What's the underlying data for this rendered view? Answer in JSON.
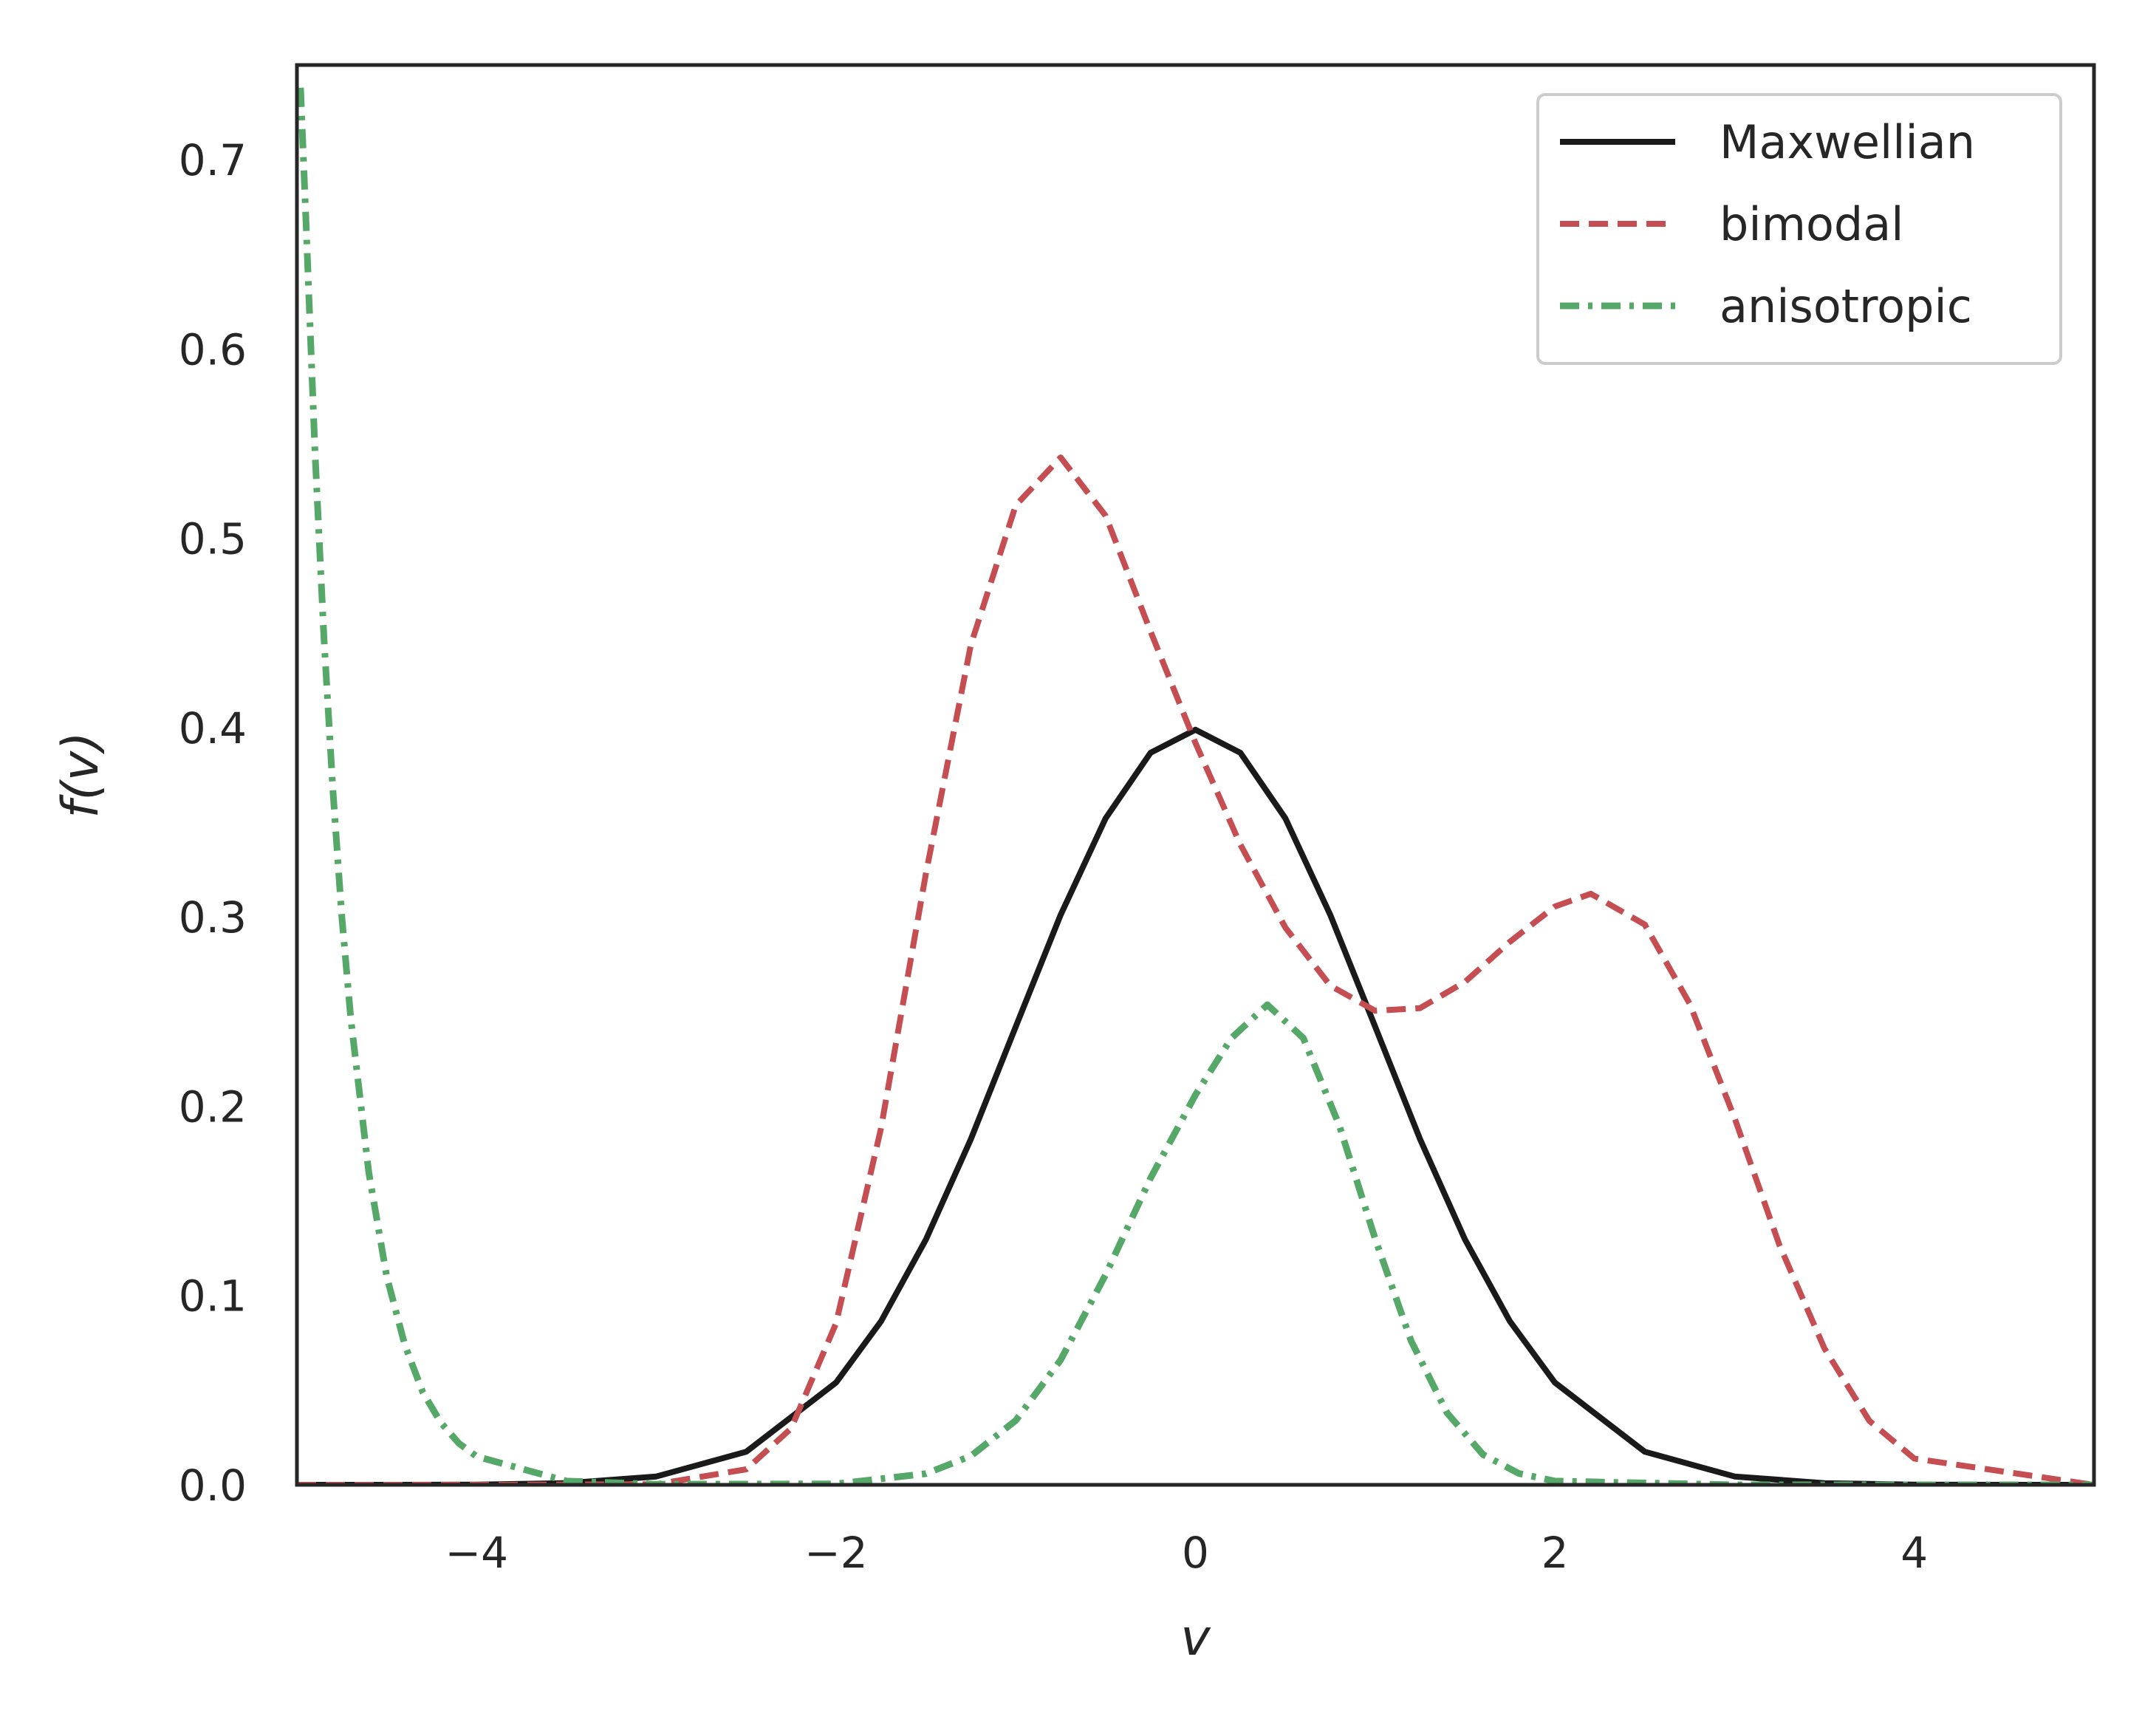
{
  "chart_data": {
    "type": "line",
    "title": "",
    "xlabel": "v",
    "ylabel": "f(v)",
    "xlim": [
      -5,
      5
    ],
    "ylim": [
      0,
      0.75
    ],
    "xticks": [
      -4,
      -2,
      0,
      2,
      4
    ],
    "xtick_labels": [
      "−4",
      "−2",
      "0",
      "2",
      "4"
    ],
    "yticks": [
      0.0,
      0.1,
      0.2,
      0.3,
      0.4,
      0.5,
      0.6,
      0.7
    ],
    "ytick_labels": [
      "0.0",
      "0.1",
      "0.2",
      "0.3",
      "0.4",
      "0.5",
      "0.6",
      "0.7"
    ],
    "grid": false,
    "legend_position": "top-right",
    "series": [
      {
        "name": "Maxwellian",
        "color": "#1a1a1a",
        "dash": "solid",
        "x": [
          -5,
          -4.5,
          -4,
          -3.5,
          -3,
          -2.5,
          -2,
          -1.75,
          -1.5,
          -1.25,
          -1,
          -0.75,
          -0.5,
          -0.25,
          0,
          0.25,
          0.5,
          0.75,
          1,
          1.25,
          1.5,
          1.75,
          2,
          2.5,
          3,
          3.5,
          4,
          4.5,
          5
        ],
        "y": [
          0.0,
          0.0,
          0.0001,
          0.0009,
          0.0044,
          0.0175,
          0.054,
          0.0863,
          0.1295,
          0.1826,
          0.242,
          0.3011,
          0.3521,
          0.3867,
          0.3989,
          0.3867,
          0.3521,
          0.3011,
          0.242,
          0.1826,
          0.1295,
          0.0863,
          0.054,
          0.0175,
          0.0044,
          0.0009,
          0.0001,
          0.0,
          0.0
        ]
      },
      {
        "name": "bimodal",
        "color": "#c44e52",
        "dash": "dashed",
        "x": [
          -5,
          -4,
          -3,
          -2.5,
          -2.25,
          -2,
          -1.75,
          -1.5,
          -1.25,
          -1,
          -0.75,
          -0.5,
          -0.25,
          0,
          0.25,
          0.5,
          0.75,
          1,
          1.25,
          1.5,
          1.75,
          2,
          2.2,
          2.5,
          2.75,
          3,
          3.25,
          3.5,
          3.75,
          4,
          5
        ],
        "y": [
          0.0,
          0.0,
          0.0003,
          0.0082,
          0.0298,
          0.0853,
          0.1882,
          0.3227,
          0.4437,
          0.5174,
          0.5427,
          0.5119,
          0.4508,
          0.3919,
          0.3382,
          0.2944,
          0.2637,
          0.2504,
          0.2518,
          0.2657,
          0.2869,
          0.3055,
          0.3122,
          0.296,
          0.2542,
          0.1938,
          0.1266,
          0.0721,
          0.0338,
          0.0139,
          0.0
        ]
      },
      {
        "name": "anisotropic",
        "color": "#55a868",
        "dash": "dashdot",
        "x": [
          -4.98,
          -4.95,
          -4.9,
          -4.85,
          -4.8,
          -4.75,
          -4.7,
          -4.6,
          -4.5,
          -4.4,
          -4.3,
          -4.2,
          -4.1,
          -4,
          -3.5,
          -3,
          -2,
          -1.5,
          -1.25,
          -1,
          -0.75,
          -0.5,
          -0.25,
          0,
          0.2,
          0.4,
          0.6,
          0.8,
          1,
          1.2,
          1.4,
          1.6,
          1.8,
          2,
          3,
          5
        ],
        "y": [
          0.738,
          0.668,
          0.547,
          0.448,
          0.367,
          0.3,
          0.246,
          0.165,
          0.11,
          0.074,
          0.049,
          0.033,
          0.022,
          0.015,
          0.002,
          0.0003,
          0.0005,
          0.0059,
          0.0152,
          0.034,
          0.066,
          0.111,
          0.162,
          0.206,
          0.236,
          0.2536,
          0.236,
          0.19,
          0.13,
          0.076,
          0.038,
          0.016,
          0.006,
          0.002,
          0.0,
          0.0
        ]
      }
    ]
  }
}
